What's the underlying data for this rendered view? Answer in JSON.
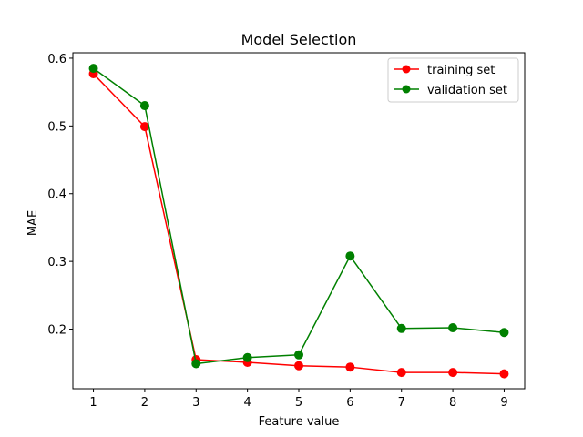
{
  "chart_data": {
    "type": "line",
    "title": "Model Selection",
    "xlabel": "Feature value",
    "ylabel": "MAE",
    "x": [
      1,
      2,
      3,
      4,
      5,
      6,
      7,
      8,
      9
    ],
    "xticks": [
      "1",
      "2",
      "3",
      "4",
      "5",
      "6",
      "7",
      "8",
      "9"
    ],
    "yticks": [
      0.2,
      0.3,
      0.4,
      0.5,
      0.6
    ],
    "ytick_labels": [
      "0.2",
      "0.3",
      "0.4",
      "0.5",
      "0.6"
    ],
    "xlim": [
      0.6,
      9.4
    ],
    "ylim": [
      0.112,
      0.608
    ],
    "grid": false,
    "legend_position": "top-right",
    "series": [
      {
        "name": "training set",
        "color": "#ff0000",
        "marker": "circle",
        "values": [
          0.577,
          0.499,
          0.155,
          0.151,
          0.146,
          0.144,
          0.136,
          0.136,
          0.134
        ]
      },
      {
        "name": "validation set",
        "color": "#008000",
        "marker": "circle",
        "values": [
          0.585,
          0.53,
          0.149,
          0.158,
          0.162,
          0.308,
          0.201,
          0.202,
          0.195
        ]
      }
    ]
  }
}
